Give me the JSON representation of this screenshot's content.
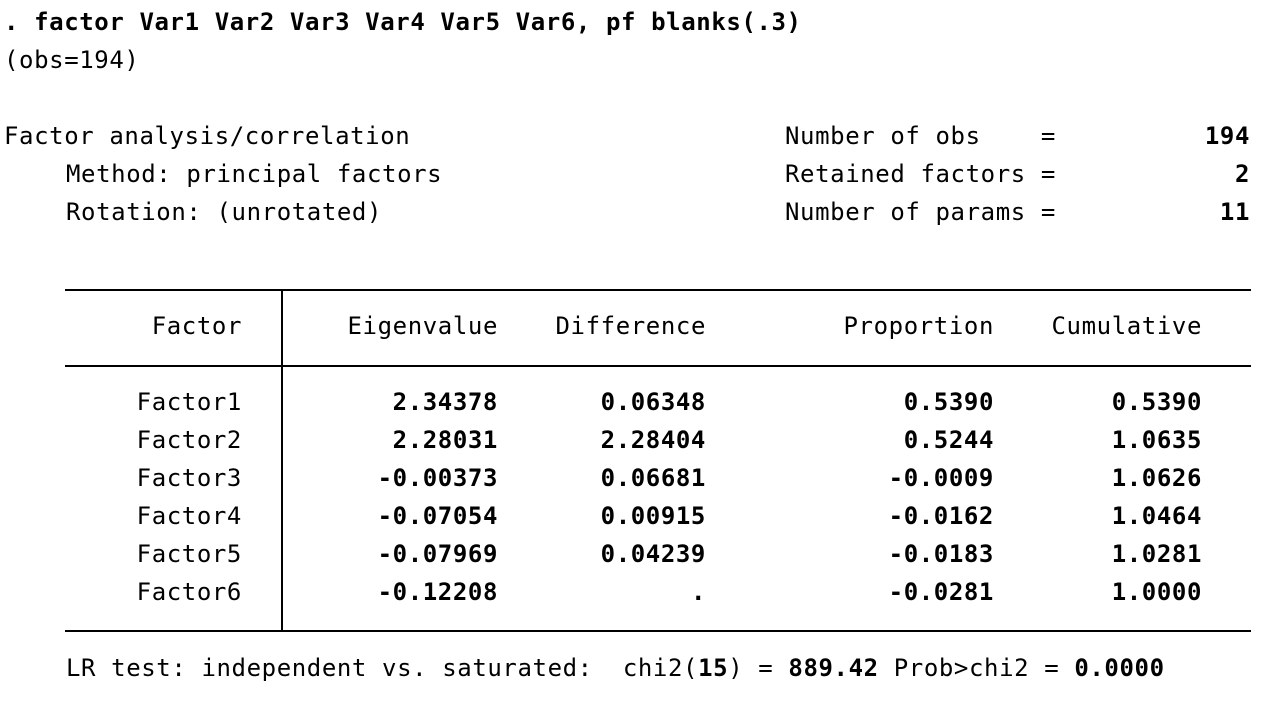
{
  "command": {
    "text": ". factor Var1 Var2 Var3 Var4 Var5 Var6, pf blanks(.3)",
    "obs_note": "(obs=194)"
  },
  "header": {
    "title": "Factor analysis/correlation",
    "method": "Method: principal factors",
    "rotation": "Rotation: (unrotated)",
    "stats": [
      {
        "label": "Number of obs    =",
        "value": "194"
      },
      {
        "label": "Retained factors =",
        "value": "2"
      },
      {
        "label": "Number of params =",
        "value": "11"
      }
    ]
  },
  "table": {
    "columns": [
      "Factor",
      "Eigenvalue",
      "Difference",
      "Proportion",
      "Cumulative"
    ],
    "rows": [
      [
        "Factor1",
        "2.34378",
        "0.06348",
        "0.5390",
        "0.5390"
      ],
      [
        "Factor2",
        "2.28031",
        "2.28404",
        "0.5244",
        "1.0635"
      ],
      [
        "Factor3",
        "-0.00373",
        "0.06681",
        "-0.0009",
        "1.0626"
      ],
      [
        "Factor4",
        "-0.07054",
        "0.00915",
        "-0.0162",
        "1.0464"
      ],
      [
        "Factor5",
        "-0.07969",
        "0.04239",
        "-0.0183",
        "1.0281"
      ],
      [
        "Factor6",
        "-0.12208",
        ".",
        "-0.0281",
        "1.0000"
      ]
    ]
  },
  "lr_test": {
    "label": "LR test: independent vs. saturated:  chi2(",
    "df": "15",
    "eq": ") = ",
    "chi2": "889.42",
    "prob_label": " Prob>chi2 = ",
    "prob": "0.0000"
  }
}
